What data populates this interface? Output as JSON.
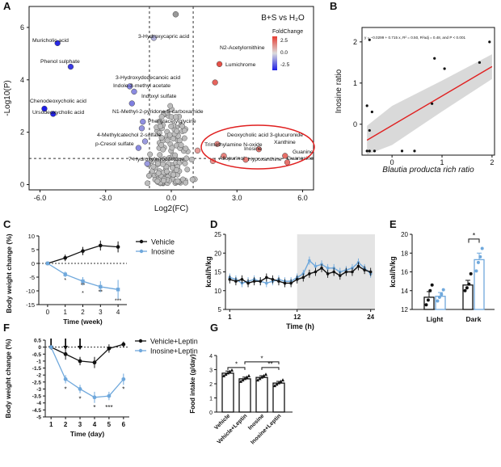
{
  "colors": {
    "vehicle": "#111111",
    "inosine": "#6fa8dc",
    "up": "#d9534f",
    "down": "#2b2bd0",
    "neutral": "#bdbdbd",
    "highlight": "#e02020",
    "fit": "#e02020",
    "band": "#cfcfcf"
  },
  "chart_data": [
    {
      "panel": "A",
      "type": "scatter",
      "title": "B+S vs H₂O",
      "xlabel": "Log2(FC)",
      "ylabel": "-Log10(P)",
      "xlim": [
        -6.5,
        6.5
      ],
      "ylim": [
        -0.2,
        6.8
      ],
      "xticks": [
        "-6.0",
        "-3.0",
        "0.0",
        "3.0",
        "6.0"
      ],
      "yticks": [
        "0",
        "2",
        "4",
        "6"
      ],
      "legend_title": "FoldChange",
      "legend_ticks": [
        "2.5",
        "0.0",
        "-2.5"
      ],
      "labeled_points": [
        {
          "label": "Muricholic acid",
          "x": -5.2,
          "y": 5.4,
          "fc": -2.8
        },
        {
          "label": "Phenol sulphate",
          "x": -4.6,
          "y": 4.5,
          "fc": -2.5
        },
        {
          "label": "Chenodeoxycholic acid",
          "x": -5.8,
          "y": 2.9,
          "fc": -3
        },
        {
          "label": "Ursodeoxycholic acid",
          "x": -5.4,
          "y": 2.7,
          "fc": -2.9
        },
        {
          "label": "3-Hydroxycapric acid",
          "x": -0.8,
          "y": 5.6,
          "fc": -0.4
        },
        {
          "label": "3-Hydroxydodecanoic acid",
          "x": -1.9,
          "y": 3.75,
          "fc": -1.2
        },
        {
          "label": "Indole-3-methyl acetate",
          "x": -1.7,
          "y": 3.55,
          "fc": -1.1
        },
        {
          "label": "Indoxyl sulfate",
          "x": -1.8,
          "y": 3.1,
          "fc": -1.3
        },
        {
          "label": "N1-Methyl-2-pyridone-5-carboxamide",
          "x": -1.3,
          "y": 2.4,
          "fc": -1
        },
        {
          "label": "Phenylacetylglycine",
          "x": -1.35,
          "y": 2.15,
          "fc": -0.9
        },
        {
          "label": "4-Methylcatechol 2-sulfate",
          "x": -1.2,
          "y": 1.65,
          "fc": -0.8
        },
        {
          "label": "p-Cresol sulfate",
          "x": -1.5,
          "y": 1.4,
          "fc": -1.1
        },
        {
          "label": "7-Hydroxyferrociferone",
          "x": -1.1,
          "y": 0.8,
          "fc": -0.8
        },
        {
          "label": "N2-Acetylornithine",
          "x": 2.2,
          "y": 4.6,
          "fc": 2.6
        },
        {
          "label": "Lumichrome",
          "x": 2.0,
          "y": 3.9,
          "fc": 2.2
        },
        {
          "label": "Deoxycholic acid 3-glucuronide",
          "x": 2.1,
          "y": 1.55,
          "fc": 1.5
        },
        {
          "label": "Trimethylamine N-oxide",
          "x": 1.2,
          "y": 1.3,
          "fc": 1.1
        },
        {
          "label": "Xanthine",
          "x": 4.0,
          "y": 1.35,
          "fc": 1.8
        },
        {
          "label": "Inosine",
          "x": 2.4,
          "y": 1.1,
          "fc": 1.6
        },
        {
          "label": "Guanine",
          "x": 5.2,
          "y": 1.1,
          "fc": 2.0
        },
        {
          "label": "Allopurinol",
          "x": 1.9,
          "y": 0.9,
          "fc": 1.3
        },
        {
          "label": "Hypoxanthine",
          "x": 3.4,
          "y": 0.95,
          "fc": 1.7
        },
        {
          "label": "Guanosine",
          "x": 5.3,
          "y": 0.85,
          "fc": 1.9
        }
      ],
      "threshold_x": [
        -1,
        1
      ],
      "threshold_y": 1.0,
      "highlight": "purine metabolites"
    },
    {
      "panel": "B",
      "type": "scatter",
      "xlabel": "Blautia producta rich ratio",
      "ylabel": "Inosine ratio",
      "annotation": "y = −0.0299 + 0.715 x, R² = 0.50, R²adj = 0.48, and P < 0.001",
      "xlim": [
        -0.6,
        2.05
      ],
      "ylim": [
        -0.75,
        2.35
      ],
      "xticks": [
        "0",
        "1",
        "2"
      ],
      "yticks": [
        "0",
        "1",
        "2"
      ],
      "fit": {
        "intercept": -0.0299,
        "slope": 0.715
      },
      "points": [
        {
          "x": -0.45,
          "y": 2.05
        },
        {
          "x": -0.5,
          "y": 0.45
        },
        {
          "x": -0.4,
          "y": 0.3
        },
        {
          "x": -0.45,
          "y": -0.15
        },
        {
          "x": -0.5,
          "y": -0.65
        },
        {
          "x": -0.45,
          "y": -0.65
        },
        {
          "x": -0.35,
          "y": -0.65
        },
        {
          "x": 0.2,
          "y": -0.65
        },
        {
          "x": 0.45,
          "y": -0.65
        },
        {
          "x": 0.8,
          "y": 0.5
        },
        {
          "x": 0.85,
          "y": 1.6
        },
        {
          "x": 1.05,
          "y": 1.35
        },
        {
          "x": 1.75,
          "y": 1.5
        },
        {
          "x": 1.95,
          "y": 2.0
        }
      ]
    },
    {
      "panel": "C",
      "type": "line",
      "xlabel": "Time (week)",
      "ylabel": "Body weight change (%)",
      "xlim": [
        -0.5,
        4.5
      ],
      "ylim": [
        -15,
        10
      ],
      "xticks": [
        "0",
        "1",
        "2",
        "3",
        "4"
      ],
      "yticks": [
        "10",
        "5",
        "0",
        "-5",
        "-10",
        "-15"
      ],
      "x": [
        0,
        1,
        2,
        3,
        4
      ],
      "series": [
        {
          "name": "Vehicle",
          "values": [
            0,
            2,
            4.5,
            6.5,
            6
          ],
          "err": [
            0,
            1.2,
            1.5,
            1.8,
            2.0
          ]
        },
        {
          "name": "Inosine",
          "values": [
            0,
            -4,
            -6.5,
            -8.5,
            -9.5
          ],
          "err": [
            0,
            1.0,
            1.5,
            2.0,
            3.5
          ]
        }
      ],
      "sig": [
        {
          "x": 1,
          "text": "*"
        },
        {
          "x": 2,
          "text": "**"
        },
        {
          "x": 2,
          "text": "*"
        },
        {
          "x": 3,
          "text": "**"
        },
        {
          "x": 4,
          "text": "***"
        }
      ]
    },
    {
      "panel": "D",
      "type": "line",
      "xlabel": "Time (h)",
      "ylabel": "kcal/h/kg",
      "xlim": [
        0.3,
        24.7
      ],
      "ylim": [
        5,
        25
      ],
      "xticks": [
        "1",
        "12",
        "24"
      ],
      "yticks": [
        "5",
        "10",
        "15",
        "20",
        "25"
      ],
      "dark_phase": [
        12,
        24
      ],
      "x": [
        1,
        2,
        3,
        4,
        5,
        6,
        7,
        8,
        9,
        10,
        11,
        12,
        13,
        14,
        15,
        16,
        17,
        18,
        19,
        20,
        21,
        22,
        23,
        24
      ],
      "series": [
        {
          "name": "Vehicle",
          "values": [
            13,
            12.5,
            13,
            12,
            12.5,
            12.5,
            13.5,
            13,
            12.5,
            12,
            12,
            13,
            13.5,
            14.5,
            15,
            16,
            14.5,
            15,
            14,
            15,
            15,
            16.5,
            15.5,
            15
          ]
        },
        {
          "name": "Inosine",
          "values": [
            13.5,
            13,
            12,
            12.5,
            13,
            12.5,
            12,
            12.5,
            13,
            12.5,
            12.5,
            13.5,
            14.5,
            18,
            16.5,
            17,
            16,
            16,
            15,
            15.5,
            16,
            17.5,
            16,
            14.5
          ]
        }
      ]
    },
    {
      "panel": "E",
      "type": "bar",
      "ylabel": "kcal/h/kg",
      "categories": [
        "Light",
        "Dark"
      ],
      "ylim": [
        12,
        20
      ],
      "yticks": [
        "12",
        "14",
        "16",
        "18",
        "20"
      ],
      "series": [
        {
          "name": "Vehicle",
          "values": [
            13.3,
            14.6
          ],
          "err": [
            0.6,
            0.5
          ],
          "points": [
            [
              12.5,
              13,
              14,
              14.6
            ],
            [
              14,
              14.3,
              14.7,
              15.8
            ]
          ]
        },
        {
          "name": "Inosine",
          "values": [
            13.4,
            17.3
          ],
          "err": [
            0.4,
            0.7
          ],
          "points": [
            [
              12.9,
              13.3,
              13.6,
              14.1
            ],
            [
              16.1,
              17,
              17.6,
              18.5
            ]
          ]
        }
      ],
      "sig": [
        {
          "text": "*"
        }
      ]
    },
    {
      "panel": "F",
      "type": "line",
      "xlabel": "Time (day)",
      "ylabel": "Body weight change (%)",
      "xlim": [
        0.6,
        6.4
      ],
      "ylim": [
        -5,
        0.5
      ],
      "xticks": [
        "1",
        "2",
        "3",
        "4",
        "5",
        "6"
      ],
      "yticks": [
        "0.5",
        "0",
        "-0.5",
        "-1",
        "-1.5",
        "-2",
        "-2.5",
        "-3",
        "-3.5",
        "-4",
        "-4.5",
        "-5"
      ],
      "x": [
        1,
        2,
        3,
        4,
        5,
        6
      ],
      "series": [
        {
          "name": "Vehicle+Leptin",
          "values": [
            0,
            -0.5,
            -1,
            -1.1,
            -0.1,
            0.2
          ],
          "err": [
            0,
            0.4,
            0.3,
            0.4,
            0.3,
            0.2
          ]
        },
        {
          "name": "Inosine+Leptin",
          "values": [
            0,
            -2.3,
            -3,
            -3.6,
            -3.5,
            -2.3
          ],
          "err": [
            0,
            0.3,
            0.3,
            0.4,
            0.3,
            0.4
          ]
        }
      ],
      "arrows_at": [
        1,
        2,
        3
      ],
      "sig": [
        {
          "x": 2,
          "text": "*"
        },
        {
          "x": 3,
          "text": "*"
        },
        {
          "x": 4,
          "text": "*"
        },
        {
          "x": 5,
          "text": "***"
        },
        {
          "x": 6,
          "text": "*"
        }
      ]
    },
    {
      "panel": "G",
      "type": "bar",
      "ylabel": "Food intake (g/day)",
      "categories": [
        "Vehicle",
        "Vehicle+Leptin",
        "Inosine",
        "Inosine+Leptin"
      ],
      "ylim": [
        0,
        4
      ],
      "yticks": [
        "0",
        "1",
        "2",
        "3",
        "4"
      ],
      "values": [
        2.75,
        2.35,
        2.45,
        2.05
      ],
      "err": [
        0.15,
        0.12,
        0.12,
        0.12
      ],
      "sig": [
        {
          "text": "*"
        },
        {
          "text": "*"
        },
        {
          "text": "**"
        }
      ]
    }
  ],
  "panel_letters": [
    "A",
    "B",
    "C",
    "D",
    "E",
    "F",
    "G"
  ]
}
